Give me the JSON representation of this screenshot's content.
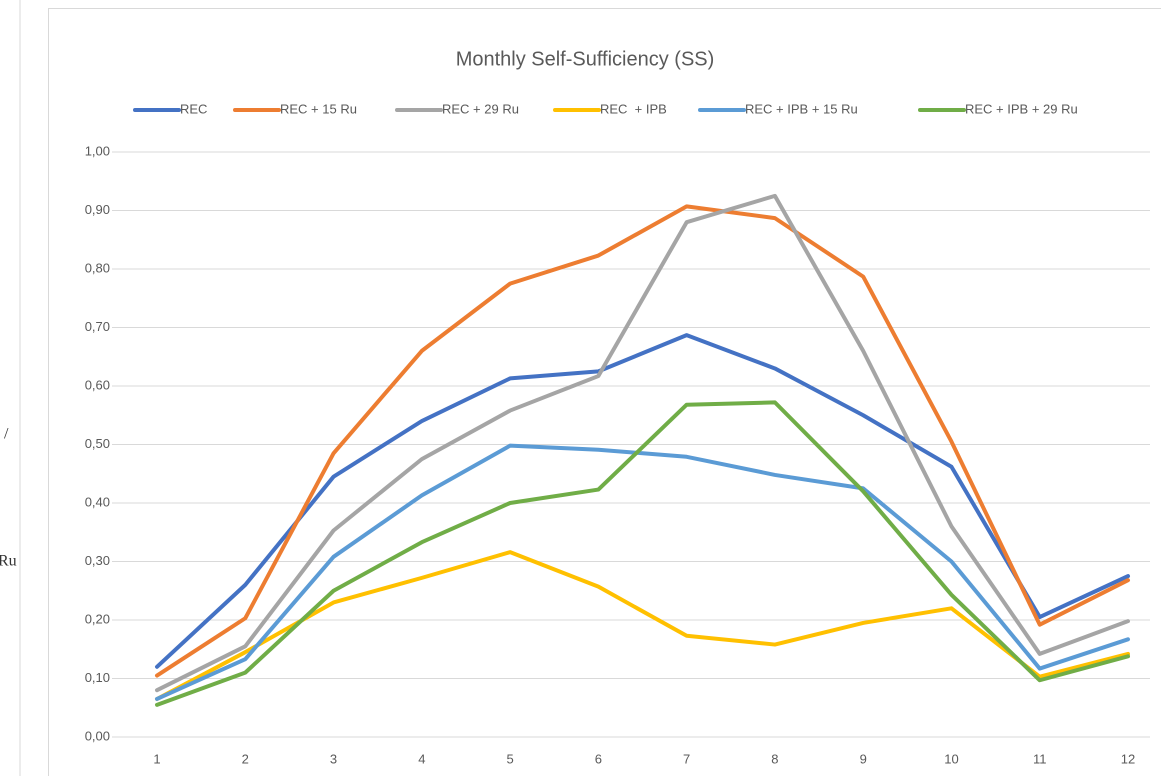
{
  "chart_data": {
    "type": "line",
    "title": "Monthly Self-Sufficiency (SS)",
    "categories": [
      "1",
      "2",
      "3",
      "4",
      "5",
      "6",
      "7",
      "8",
      "9",
      "10",
      "11",
      "12"
    ],
    "series": [
      {
        "name": "REC",
        "color": "#4472c4",
        "values": [
          0.12,
          0.26,
          0.445,
          0.54,
          0.613,
          0.625,
          0.687,
          0.63,
          0.55,
          0.462,
          0.205,
          0.275
        ]
      },
      {
        "name": "REC + 15 Ru",
        "color": "#ed7d31",
        "values": [
          0.105,
          0.203,
          0.485,
          0.66,
          0.775,
          0.823,
          0.907,
          0.887,
          0.787,
          0.505,
          0.192,
          0.268
        ]
      },
      {
        "name": "REC + 29 Ru",
        "color": "#a5a5a5",
        "values": [
          0.08,
          0.155,
          0.353,
          0.475,
          0.558,
          0.617,
          0.88,
          0.925,
          0.66,
          0.36,
          0.142,
          0.198
        ]
      },
      {
        "name": "REC  + IPB",
        "color": "#ffc000",
        "values": [
          0.065,
          0.145,
          0.23,
          0.272,
          0.316,
          0.257,
          0.173,
          0.158,
          0.195,
          0.22,
          0.103,
          0.142
        ]
      },
      {
        "name": "REC + IPB + 15 Ru",
        "color": "#5b9bd5",
        "values": [
          0.065,
          0.133,
          0.308,
          0.413,
          0.498,
          0.491,
          0.479,
          0.448,
          0.425,
          0.3,
          0.117,
          0.167
        ]
      },
      {
        "name": "REC + IPB + 29 Ru",
        "color": "#70ad47",
        "values": [
          0.055,
          0.11,
          0.25,
          0.333,
          0.4,
          0.423,
          0.568,
          0.572,
          0.42,
          0.243,
          0.097,
          0.138
        ]
      }
    ],
    "ylim": [
      0,
      1
    ],
    "yticks": [
      {
        "value": 0,
        "label": "0,00"
      },
      {
        "value": 0.1,
        "label": "0,10"
      },
      {
        "value": 0.2,
        "label": "0,20"
      },
      {
        "value": 0.3,
        "label": "0,30"
      },
      {
        "value": 0.4,
        "label": "0,40"
      },
      {
        "value": 0.5,
        "label": "0,50"
      },
      {
        "value": 0.6,
        "label": "0,60"
      },
      {
        "value": 0.7,
        "label": "0,70"
      },
      {
        "value": 0.8,
        "label": "0,80"
      },
      {
        "value": 0.9,
        "label": "0,90"
      },
      {
        "value": 1,
        "label": "1,00"
      }
    ],
    "grid": true,
    "legend": "top"
  },
  "side_panel": {
    "texts": [
      "/",
      "Ru"
    ]
  }
}
